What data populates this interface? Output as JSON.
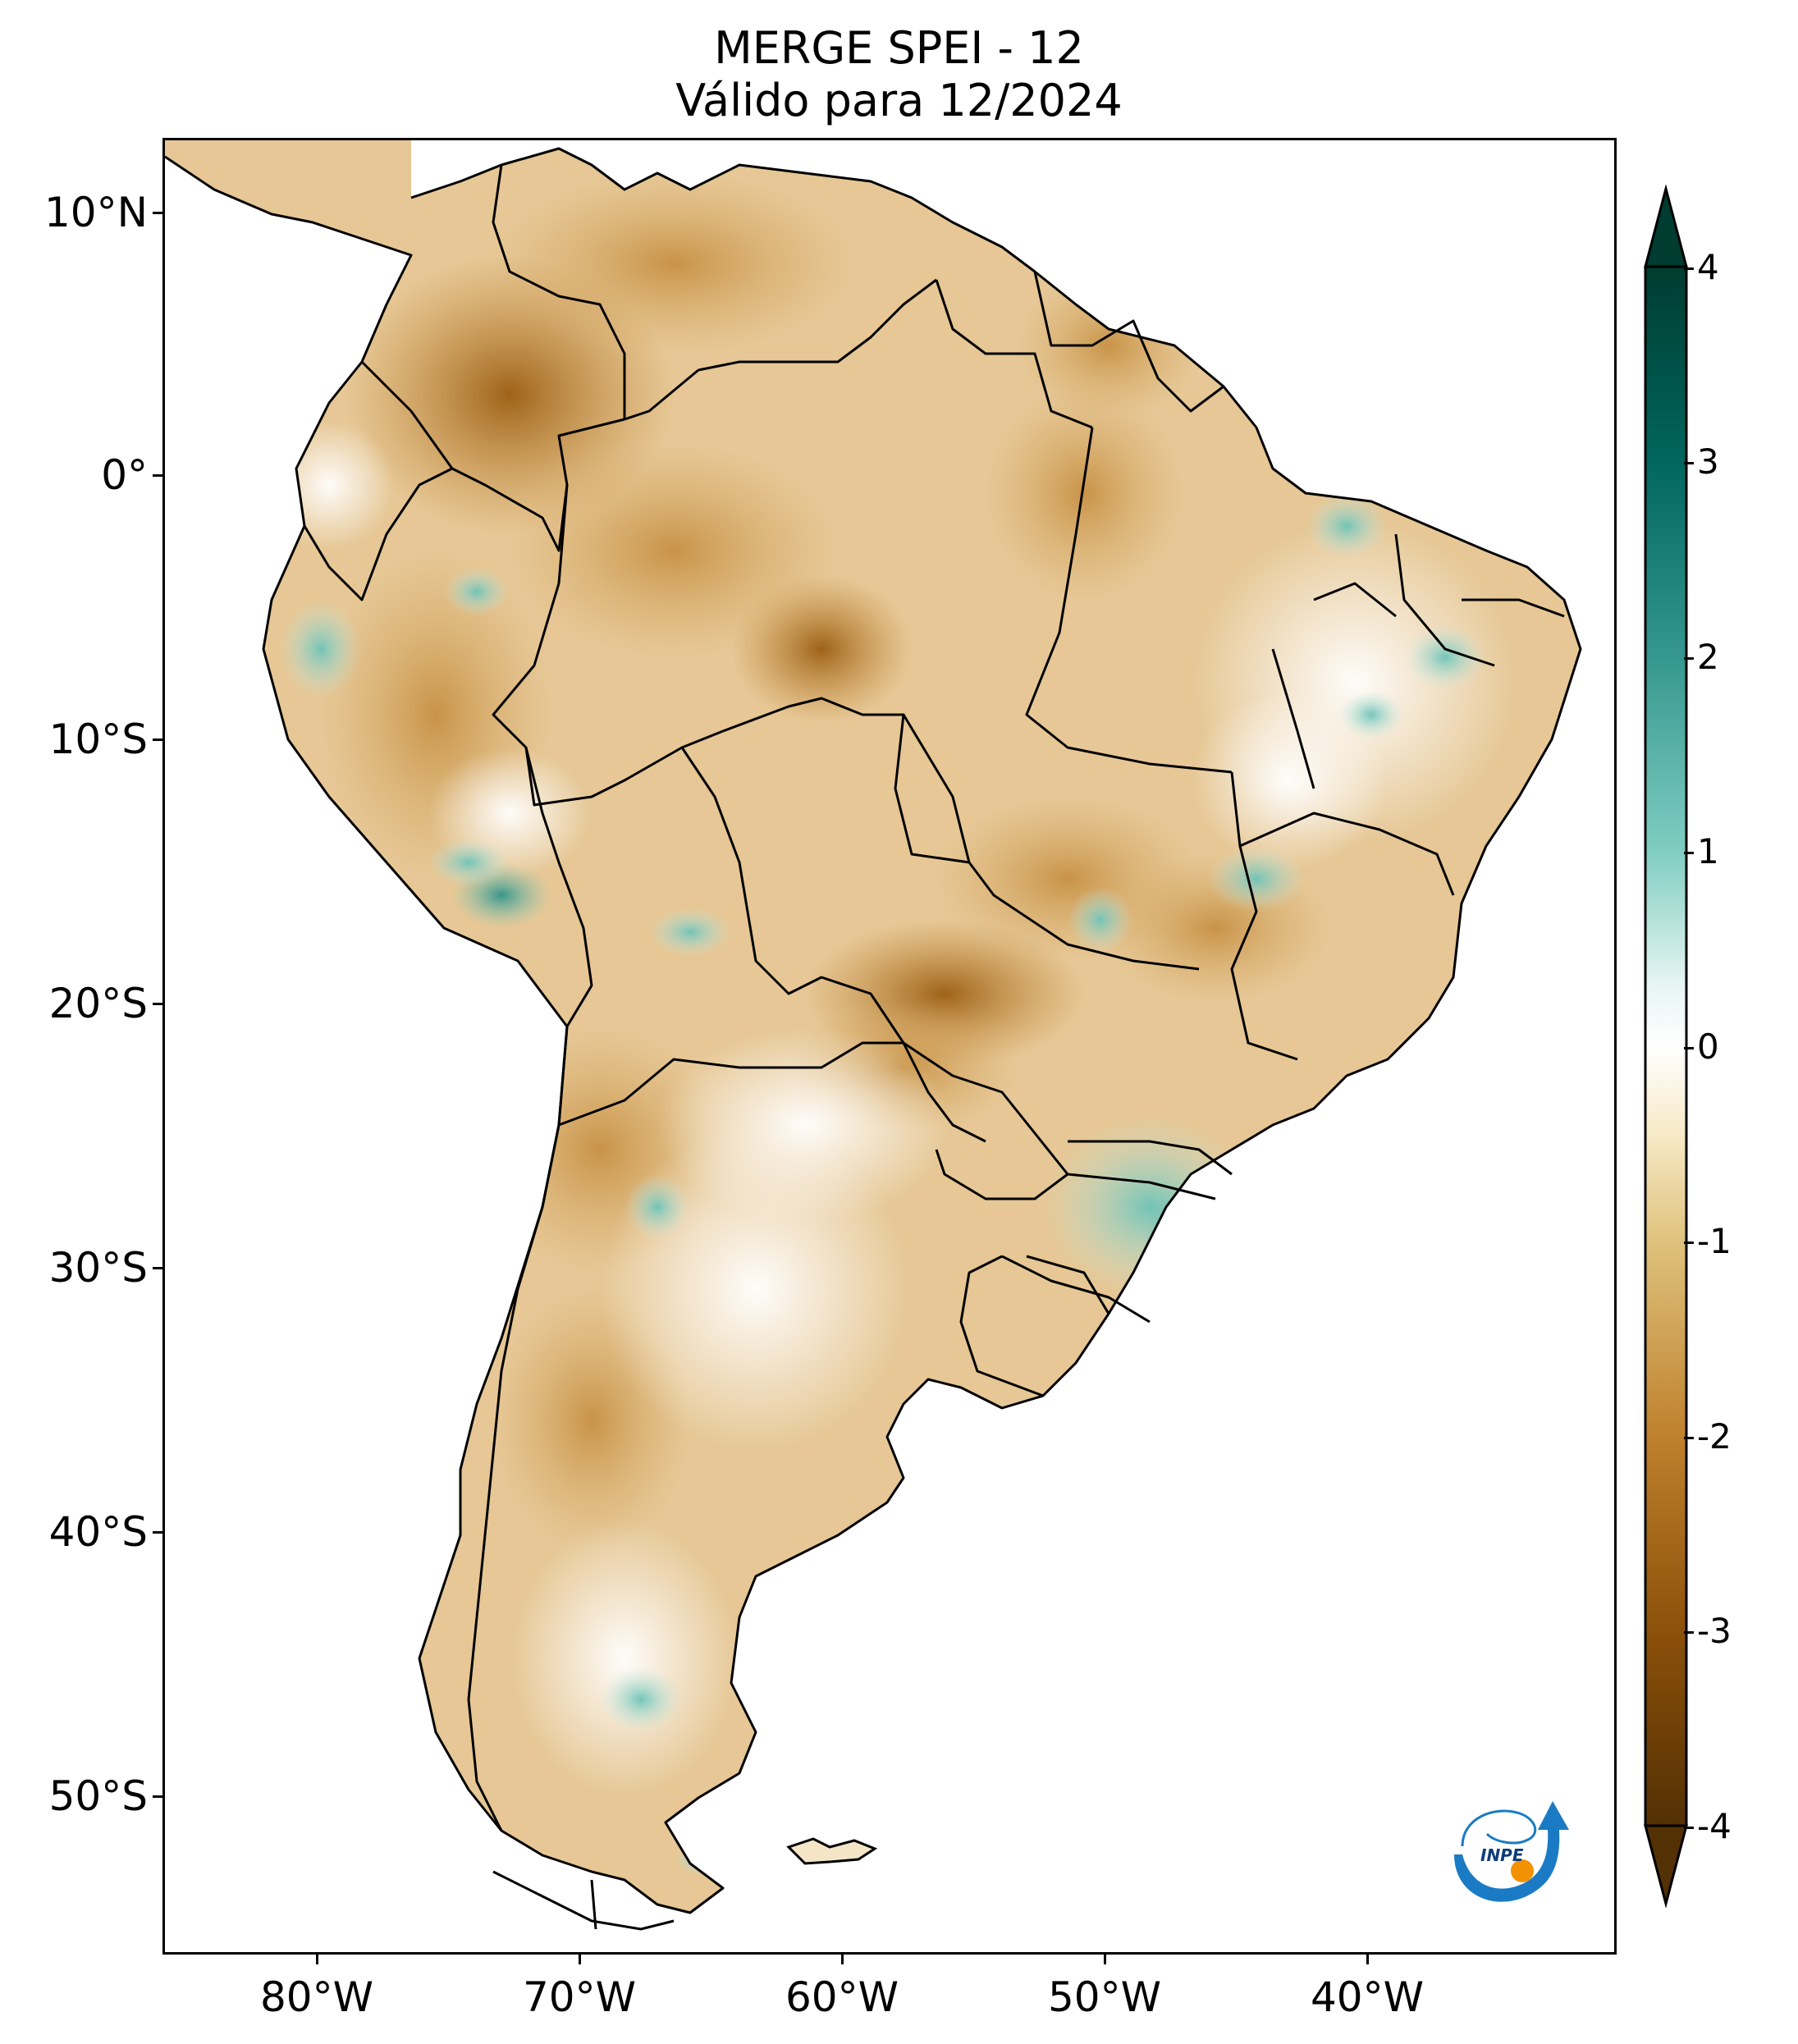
{
  "title": {
    "line1": "MERGE   SPEI - 12",
    "line2": "Válido para 12/2024"
  },
  "axes": {
    "lat_labels": [
      "10°N",
      "0°",
      "10°S",
      "20°S",
      "30°S",
      "40°S",
      "50°S"
    ],
    "lon_labels": [
      "80°W",
      "70°W",
      "60°W",
      "50°W",
      "40°W"
    ],
    "lon_range": [
      -85,
      -29
    ],
    "lat_range": [
      -56,
      13
    ]
  },
  "colorbar": {
    "labels": [
      "4",
      "3",
      "2",
      "1",
      "0",
      "-1",
      "-2",
      "-3",
      "-4"
    ],
    "range": [
      -4,
      4
    ],
    "colors": {
      "min": "#543005",
      "dry_strong": "#8c510a",
      "dry": "#bf812d",
      "dry_light": "#dfc27d",
      "near_normal_dry": "#f6e8c3",
      "normal": "#ffffff",
      "wet_light": "#c7eae5",
      "wet": "#80cdc1",
      "wet_medium": "#35978f",
      "wet_strong": "#01665e",
      "max": "#003c30"
    }
  },
  "logo": {
    "text": "INPE"
  }
}
